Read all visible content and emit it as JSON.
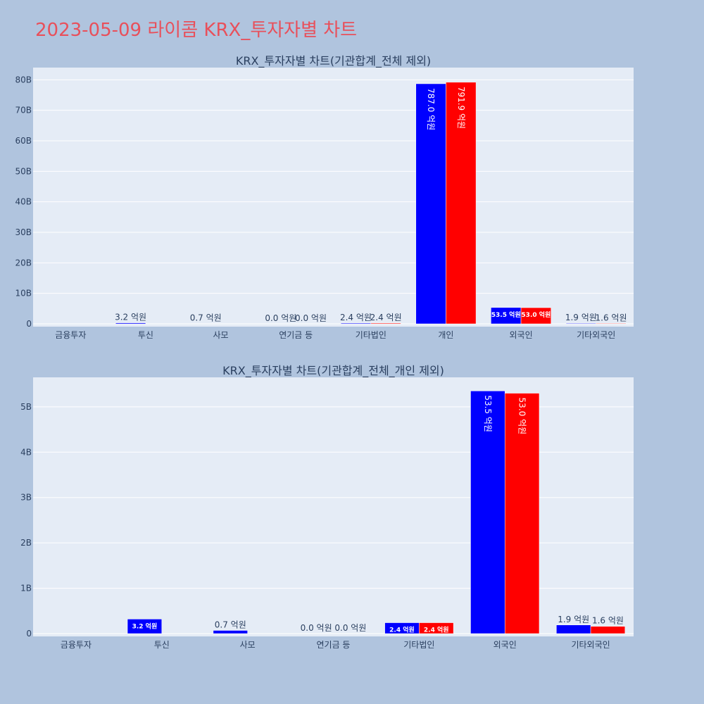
{
  "page_title": "2023-05-09 라이콤 KRX_투자자별 차트",
  "chart_data": [
    {
      "type": "bar",
      "title": "KRX_투자자별 차트(기관합계_전체 제외)",
      "categories": [
        "금융투자",
        "투신",
        "사모",
        "연기금 등",
        "기타법인",
        "개인",
        "외국인",
        "기타외국인"
      ],
      "series": [
        {
          "color": "#0000ff",
          "values": [
            0,
            320000000,
            70000000,
            0,
            240000000,
            78700000000,
            5350000000,
            190000000
          ],
          "labels": [
            "",
            "3.2 억원",
            "0.7 억원",
            "0.0 억원",
            "2.4 억원",
            "787.0 억원",
            "53.5 억원",
            "1.9 억원"
          ]
        },
        {
          "color": "#ff0000",
          "values": [
            0,
            0,
            0,
            0,
            240000000,
            79190000000,
            5300000000,
            160000000
          ],
          "labels": [
            "",
            "",
            "",
            "0.0 억원",
            "2.4 억원",
            "791.9 억원",
            "53.0 억원",
            "1.6 억원"
          ]
        }
      ],
      "ylim": [
        0,
        84000000000
      ],
      "yticks": [
        0,
        10000000000,
        20000000000,
        30000000000,
        40000000000,
        50000000000,
        60000000000,
        70000000000,
        80000000000
      ],
      "ytick_labels": [
        "0",
        "10B",
        "20B",
        "30B",
        "40B",
        "50B",
        "60B",
        "70B",
        "80B"
      ],
      "grid": true
    },
    {
      "type": "bar",
      "title": "KRX_투자자별 차트(기관합계_전체_개인 제외)",
      "categories": [
        "금융투자",
        "투신",
        "사모",
        "연기금 등",
        "기타법인",
        "외국인",
        "기타외국인"
      ],
      "series": [
        {
          "color": "#0000ff",
          "values": [
            0,
            320000000,
            70000000,
            0,
            240000000,
            5350000000,
            190000000
          ],
          "labels": [
            "",
            "3.2 억원",
            "0.7 억원",
            "0.0 억원",
            "2.4 억원",
            "53.5 억원",
            "1.9 억원"
          ]
        },
        {
          "color": "#ff0000",
          "values": [
            0,
            0,
            0,
            0,
            240000000,
            5300000000,
            160000000
          ],
          "labels": [
            "",
            "",
            "",
            "0.0 억원",
            "2.4 억원",
            "53.0 억원",
            "1.6 억원"
          ]
        }
      ],
      "ylim": [
        0,
        5650000000
      ],
      "yticks": [
        0,
        1000000000,
        2000000000,
        3000000000,
        4000000000,
        5000000000
      ],
      "ytick_labels": [
        "0",
        "1B",
        "2B",
        "3B",
        "4B",
        "5B"
      ],
      "grid": true
    }
  ]
}
